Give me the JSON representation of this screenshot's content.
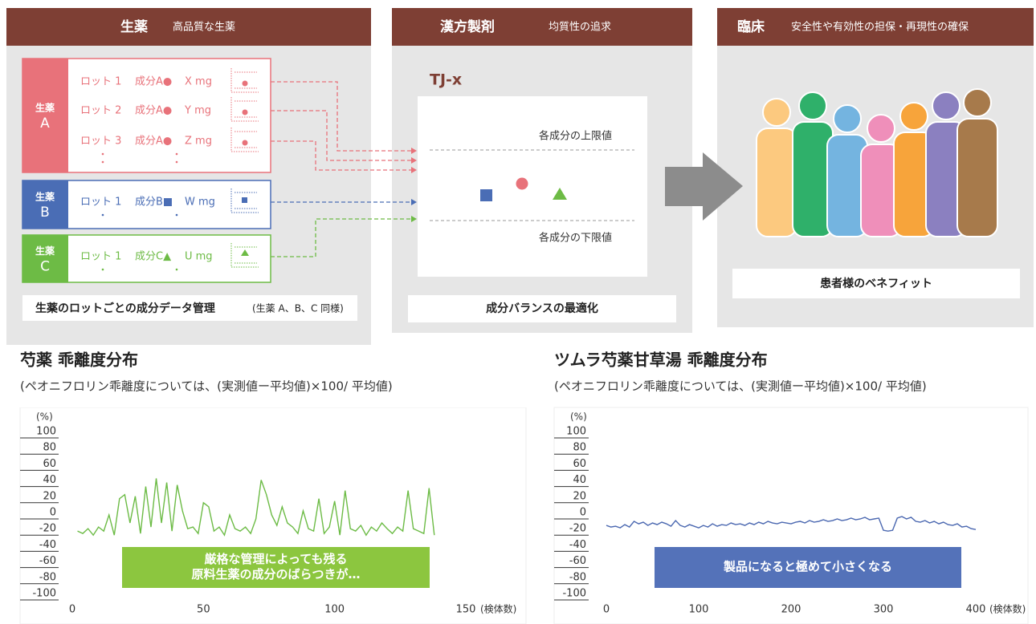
{
  "diagram": {
    "panels": [
      {
        "title": "生薬",
        "subtitle": "高品質な生薬",
        "caption": "生薬のロットごとの成分データ管理",
        "caption_note": "(生薬 A、B、C 同様)"
      },
      {
        "title": "漢方製剤",
        "subtitle": "均質性の追求",
        "product": "TJ-x",
        "upper": "各成分の上限値",
        "lower": "各成分の下限値",
        "caption": "成分バランスの最適化"
      },
      {
        "title": "臨床",
        "subtitle": "安全性や有効性の担保・再現性の確保",
        "caption": "患者様のベネフィット"
      }
    ],
    "herbs": [
      {
        "label": [
          "生薬",
          "A"
        ],
        "lots": [
          {
            "lot": "ロット 1",
            "component": "成分A●",
            "amount": "X mg"
          },
          {
            "lot": "ロット 2",
            "component": "成分A●",
            "amount": "Y mg"
          },
          {
            "lot": "ロット 3",
            "component": "成分A●",
            "amount": "Z mg"
          }
        ]
      },
      {
        "label": [
          "生薬",
          "B"
        ],
        "lots": [
          {
            "lot": "ロット 1",
            "component": "成分B■",
            "amount": "W mg"
          }
        ]
      },
      {
        "label": [
          "生薬",
          "C"
        ],
        "lots": [
          {
            "lot": "ロット 1",
            "component": "成分C▲",
            "amount": "U mg"
          }
        ]
      }
    ]
  },
  "chart_data": [
    {
      "type": "line",
      "title": "芍薬 乖離度分布",
      "subtitle": "(ペオニフロリン乖離度については、(実測値ー平均値)×100/ 平均値)",
      "y_label": "(%)",
      "x_label": "(検体数)",
      "annotation": [
        "厳格な管理によっても残る",
        "原料生薬の成分のばらつきが…"
      ],
      "annotation_color": "#8cc63f",
      "xlim": [
        0,
        150
      ],
      "xticks": [
        0,
        50,
        100,
        150
      ],
      "ylim": [
        -100,
        100
      ],
      "yticks": [
        100,
        80,
        60,
        40,
        20,
        0,
        -20,
        -40,
        -60,
        -80,
        -100
      ],
      "series": [
        {
          "color": "#6cbb45",
          "x": [
            2,
            4,
            6,
            8,
            10,
            12,
            14,
            16,
            18,
            20,
            22,
            24,
            26,
            28,
            30,
            32,
            34,
            36,
            38,
            40,
            42,
            44,
            46,
            48,
            50,
            52,
            54,
            56,
            58,
            60,
            62,
            64,
            66,
            68,
            70,
            72,
            74,
            76,
            78,
            80,
            82,
            84,
            86,
            88,
            90,
            92,
            94,
            96,
            98,
            100,
            102,
            104,
            106,
            108,
            110,
            112,
            114,
            116,
            118,
            120,
            122,
            124,
            126,
            128,
            130,
            132,
            134,
            136,
            138
          ],
          "values": [
            -15,
            -18,
            -12,
            -20,
            -10,
            -15,
            5,
            -20,
            25,
            30,
            -5,
            28,
            -18,
            40,
            -10,
            50,
            -5,
            45,
            -15,
            42,
            10,
            -12,
            -10,
            -18,
            20,
            15,
            -15,
            -10,
            -20,
            5,
            -12,
            -15,
            -10,
            -18,
            0,
            48,
            30,
            5,
            -8,
            15,
            -5,
            -10,
            -18,
            10,
            -12,
            -15,
            25,
            -18,
            -10,
            22,
            -20,
            35,
            -12,
            -15,
            -8,
            -20,
            -10,
            -15,
            -5,
            -12,
            -18,
            -10,
            -15,
            35,
            -12,
            -15,
            -18,
            38,
            -20
          ]
        }
      ]
    },
    {
      "type": "line",
      "title": "ツムラ芍薬甘草湯 乖離度分布",
      "subtitle": "(ペオニフロリン乖離度については、(実測値ー平均値)×100/ 平均値)",
      "y_label": "(%)",
      "x_label": "(検体数)",
      "annotation": [
        "製品になると極めて小さくなる"
      ],
      "annotation_color": "#5472b9",
      "xlim": [
        0,
        400
      ],
      "xticks": [
        0,
        100,
        200,
        300,
        400
      ],
      "ylim": [
        -100,
        100
      ],
      "yticks": [
        100,
        80,
        60,
        40,
        20,
        0,
        -20,
        -40,
        -60,
        -80,
        -100
      ],
      "series": [
        {
          "color": "#4a67b0",
          "x": [
            0,
            5,
            10,
            15,
            20,
            25,
            30,
            35,
            40,
            45,
            50,
            55,
            60,
            65,
            70,
            75,
            80,
            85,
            90,
            95,
            100,
            105,
            110,
            115,
            120,
            125,
            130,
            135,
            140,
            145,
            150,
            155,
            160,
            165,
            170,
            175,
            180,
            185,
            190,
            195,
            200,
            205,
            210,
            215,
            220,
            225,
            230,
            235,
            240,
            245,
            250,
            255,
            260,
            265,
            270,
            275,
            280,
            285,
            290,
            295,
            300,
            305,
            310,
            315,
            320,
            325,
            330,
            335,
            340,
            345,
            350,
            355,
            360,
            365,
            370,
            375,
            380,
            385,
            390,
            395,
            400
          ],
          "values": [
            -8,
            -10,
            -9,
            -11,
            -7,
            -10,
            -3,
            -6,
            -4,
            -8,
            -5,
            -7,
            -4,
            -6,
            -9,
            -2,
            -8,
            -10,
            -7,
            -9,
            -11,
            -8,
            -10,
            -6,
            -9,
            -7,
            -8,
            -5,
            -7,
            -6,
            -8,
            -5,
            -7,
            -4,
            -6,
            -3,
            -5,
            -6,
            -4,
            -5,
            -6,
            -4,
            -3,
            -5,
            -2,
            -4,
            -3,
            -1,
            -3,
            -2,
            0,
            -2,
            -1,
            1,
            -1,
            0,
            2,
            -1,
            0,
            1,
            -14,
            -15,
            -14,
            1,
            3,
            0,
            2,
            -3,
            -4,
            -2,
            -5,
            -3,
            -6,
            -4,
            -7,
            -8,
            -6,
            -10,
            -9,
            -12,
            -13
          ]
        }
      ]
    }
  ]
}
